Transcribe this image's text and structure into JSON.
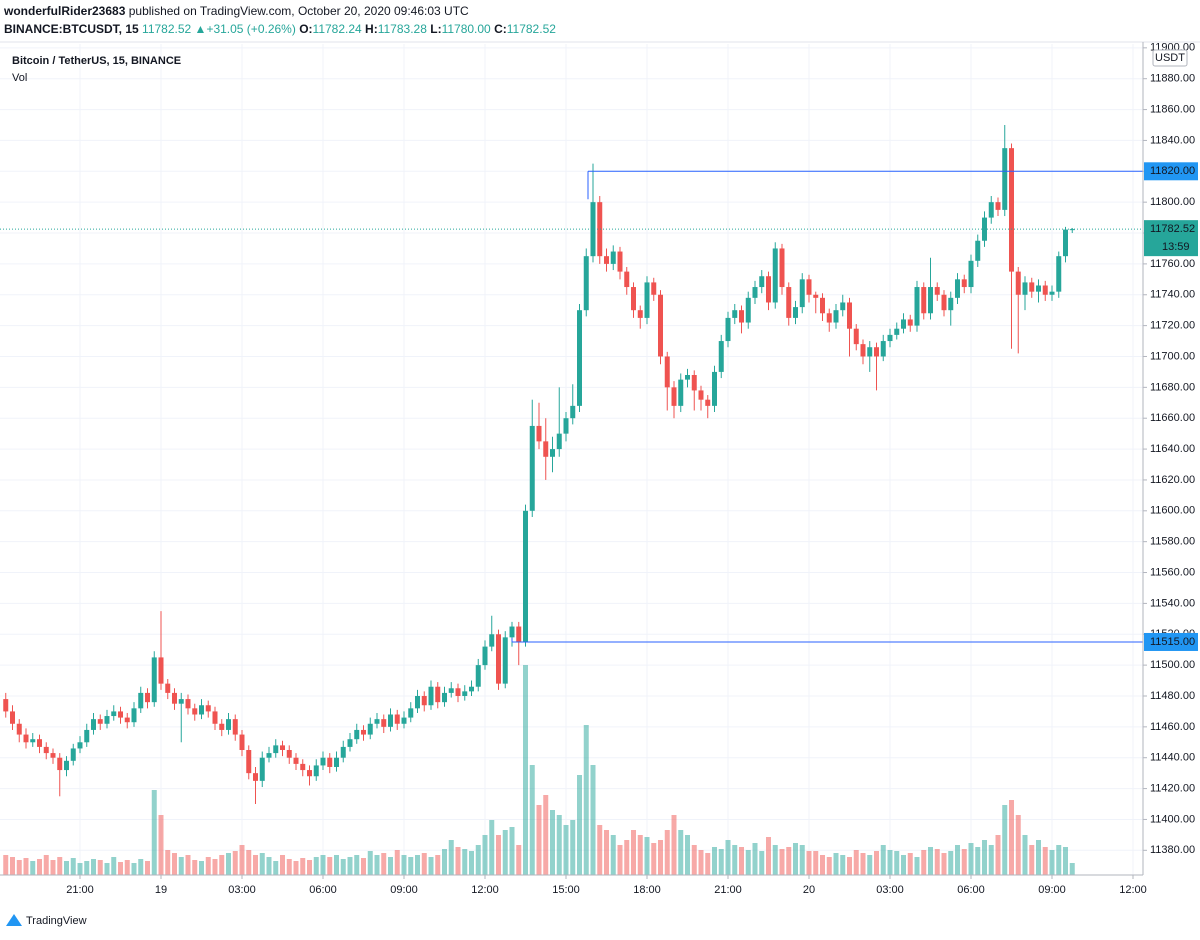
{
  "header": {
    "publisher": "wonderfulRider23683",
    "published_text": "published on TradingView.com, October 20, 2020 09:46:03 UTC",
    "symbol": "BINANCE:BTCUSDT, 15",
    "last": "11782.52",
    "arrow": "▲",
    "change": "+31.05 (+0.26%)",
    "o_label": "O:",
    "o": "11782.24",
    "h_label": "H:",
    "h": "11783.28",
    "l_label": "L:",
    "l": "11780.00",
    "c_label": "C:",
    "c": "11782.52"
  },
  "legend": {
    "title": "Bitcoin / TetherUS, 15, BINANCE",
    "vol": "Vol"
  },
  "currency": "USDT",
  "brand": "TradingView",
  "chart_data": {
    "type": "candlestick",
    "up_color": "#26a69a",
    "down_color": "#ef5350",
    "grid": true,
    "ylim": [
      11364,
      11931
    ],
    "yticks": [
      {
        "value": 11380,
        "label": "11380.00"
      },
      {
        "value": 11400,
        "label": "11400.00"
      },
      {
        "value": 11420,
        "label": "11420.00"
      },
      {
        "value": 11440,
        "label": "11440.00"
      },
      {
        "value": 11460,
        "label": "11460.00"
      },
      {
        "value": 11480,
        "label": "11480.00"
      },
      {
        "value": 11500,
        "label": "11500.00"
      },
      {
        "value": 11520,
        "label": "11520.00"
      },
      {
        "value": 11540,
        "label": "11540.00"
      },
      {
        "value": 11560,
        "label": "11560.00"
      },
      {
        "value": 11580,
        "label": "11580.00"
      },
      {
        "value": 11600,
        "label": "11600.00"
      },
      {
        "value": 11620,
        "label": "11620.00"
      },
      {
        "value": 11640,
        "label": "11640.00"
      },
      {
        "value": 11660,
        "label": "11660.00"
      },
      {
        "value": 11680,
        "label": "11680.00"
      },
      {
        "value": 11700,
        "label": "11700.00"
      },
      {
        "value": 11720,
        "label": "11720.00"
      },
      {
        "value": 11740,
        "label": "11740.00"
      },
      {
        "value": 11760,
        "label": "11760.00"
      },
      {
        "value": 11780,
        "label": "11780.00"
      },
      {
        "value": 11800,
        "label": "11800.00"
      },
      {
        "value": 11820,
        "label": "11820.00"
      },
      {
        "value": 11840,
        "label": "11840.00"
      },
      {
        "value": 11860,
        "label": "11860.00"
      },
      {
        "value": 11880,
        "label": "11880.00"
      },
      {
        "value": 11900,
        "label": "11900.00"
      }
    ],
    "xticks": [
      {
        "value": 11,
        "label": "21:00"
      },
      {
        "value": 23,
        "label": "19"
      },
      {
        "value": 35,
        "label": "03:00"
      },
      {
        "value": 47,
        "label": "06:00"
      },
      {
        "value": 59,
        "label": "09:00"
      },
      {
        "value": 71,
        "label": "12:00"
      },
      {
        "value": 83,
        "label": "15:00"
      },
      {
        "value": 95,
        "label": "18:00"
      },
      {
        "value": 107,
        "label": "21:00"
      },
      {
        "value": 119,
        "label": "20"
      },
      {
        "value": 131,
        "label": "03:00"
      },
      {
        "value": 143,
        "label": "06:00"
      },
      {
        "value": 155,
        "label": "09:00"
      },
      {
        "value": 167,
        "label": "12:00"
      }
    ],
    "levels": [
      {
        "value": 11820,
        "label": "11820.00"
      },
      {
        "value": 11515,
        "label": "11515.00"
      }
    ],
    "last_price": {
      "value": 11782.52,
      "label": "11782.52",
      "countdown": "13:59"
    },
    "ohlc": [
      [
        11478,
        11482,
        11466,
        11470
      ],
      [
        11470,
        11474,
        11458,
        11462
      ],
      [
        11462,
        11465,
        11450,
        11455
      ],
      [
        11455,
        11459,
        11446,
        11450
      ],
      [
        11450,
        11456,
        11447,
        11452
      ],
      [
        11452,
        11455,
        11443,
        11447
      ],
      [
        11447,
        11450,
        11439,
        11443
      ],
      [
        11443,
        11446,
        11436,
        11440
      ],
      [
        11440,
        11443,
        11415,
        11432
      ],
      [
        11432,
        11441,
        11428,
        11438
      ],
      [
        11438,
        11449,
        11435,
        11446
      ],
      [
        11446,
        11454,
        11443,
        11450
      ],
      [
        11450,
        11462,
        11447,
        11458
      ],
      [
        11458,
        11469,
        11455,
        11465
      ],
      [
        11465,
        11468,
        11458,
        11462
      ],
      [
        11462,
        11471,
        11459,
        11467
      ],
      [
        11467,
        11474,
        11464,
        11470
      ],
      [
        11470,
        11473,
        11462,
        11466
      ],
      [
        11466,
        11469,
        11459,
        11463
      ],
      [
        11463,
        11476,
        11460,
        11472
      ],
      [
        11472,
        11486,
        11469,
        11482
      ],
      [
        11482,
        11485,
        11472,
        11476
      ],
      [
        11476,
        11509,
        11473,
        11505
      ],
      [
        11505,
        11535,
        11484,
        11488
      ],
      [
        11488,
        11491,
        11478,
        11482
      ],
      [
        11482,
        11485,
        11471,
        11475
      ],
      [
        11475,
        11482,
        11450,
        11478
      ],
      [
        11478,
        11481,
        11468,
        11472
      ],
      [
        11472,
        11475,
        11464,
        11468
      ],
      [
        11468,
        11478,
        11465,
        11474
      ],
      [
        11474,
        11477,
        11466,
        11470
      ],
      [
        11470,
        11473,
        11458,
        11462
      ],
      [
        11462,
        11465,
        11454,
        11458
      ],
      [
        11458,
        11469,
        11455,
        11465
      ],
      [
        11465,
        11468,
        11451,
        11455
      ],
      [
        11455,
        11458,
        11441,
        11445
      ],
      [
        11445,
        11448,
        11426,
        11430
      ],
      [
        11430,
        11434,
        11410,
        11425
      ],
      [
        11425,
        11444,
        11421,
        11440
      ],
      [
        11440,
        11447,
        11437,
        11443
      ],
      [
        11443,
        11452,
        11440,
        11448
      ],
      [
        11448,
        11451,
        11441,
        11445
      ],
      [
        11445,
        11448,
        11436,
        11440
      ],
      [
        11440,
        11443,
        11432,
        11436
      ],
      [
        11436,
        11439,
        11428,
        11432
      ],
      [
        11432,
        11435,
        11422,
        11428
      ],
      [
        11428,
        11439,
        11425,
        11435
      ],
      [
        11435,
        11444,
        11432,
        11440
      ],
      [
        11440,
        11443,
        11430,
        11434
      ],
      [
        11434,
        11444,
        11431,
        11440
      ],
      [
        11440,
        11451,
        11437,
        11447
      ],
      [
        11447,
        11456,
        11444,
        11452
      ],
      [
        11452,
        11462,
        11449,
        11458
      ],
      [
        11458,
        11461,
        11451,
        11455
      ],
      [
        11455,
        11466,
        11452,
        11462
      ],
      [
        11462,
        11469,
        11459,
        11465
      ],
      [
        11465,
        11468,
        11456,
        11460
      ],
      [
        11460,
        11472,
        11457,
        11468
      ],
      [
        11468,
        11471,
        11458,
        11462
      ],
      [
        11462,
        11470,
        11459,
        11466
      ],
      [
        11466,
        11476,
        11463,
        11472
      ],
      [
        11472,
        11484,
        11469,
        11480
      ],
      [
        11480,
        11483,
        11470,
        11474
      ],
      [
        11474,
        11490,
        11471,
        11486
      ],
      [
        11486,
        11489,
        11472,
        11476
      ],
      [
        11476,
        11486,
        11473,
        11482
      ],
      [
        11482,
        11489,
        11479,
        11485
      ],
      [
        11485,
        11488,
        11476,
        11480
      ],
      [
        11480,
        11487,
        11477,
        11483
      ],
      [
        11483,
        11490,
        11480,
        11486
      ],
      [
        11486,
        11504,
        11483,
        11500
      ],
      [
        11500,
        11516,
        11497,
        11512
      ],
      [
        11512,
        11532,
        11509,
        11520
      ],
      [
        11520,
        11523,
        11484,
        11488
      ],
      [
        11488,
        11522,
        11485,
        11518
      ],
      [
        11518,
        11528,
        11512,
        11525
      ],
      [
        11525,
        11528,
        11500,
        11515
      ],
      [
        11515,
        11604,
        11512,
        11600
      ],
      [
        11600,
        11672,
        11596,
        11655
      ],
      [
        11655,
        11670,
        11640,
        11645
      ],
      [
        11645,
        11660,
        11620,
        11635
      ],
      [
        11635,
        11648,
        11625,
        11640
      ],
      [
        11640,
        11680,
        11635,
        11650
      ],
      [
        11650,
        11664,
        11645,
        11660
      ],
      [
        11660,
        11682,
        11656,
        11668
      ],
      [
        11668,
        11734,
        11664,
        11730
      ],
      [
        11730,
        11770,
        11726,
        11765
      ],
      [
        11765,
        11825,
        11761,
        11800
      ],
      [
        11800,
        11804,
        11760,
        11765
      ],
      [
        11765,
        11770,
        11755,
        11760
      ],
      [
        11760,
        11772,
        11756,
        11768
      ],
      [
        11768,
        11771,
        11750,
        11755
      ],
      [
        11755,
        11758,
        11740,
        11745
      ],
      [
        11745,
        11748,
        11725,
        11730
      ],
      [
        11730,
        11733,
        11718,
        11725
      ],
      [
        11725,
        11752,
        11721,
        11748
      ],
      [
        11748,
        11751,
        11736,
        11740
      ],
      [
        11740,
        11743,
        11695,
        11700
      ],
      [
        11700,
        11703,
        11665,
        11680
      ],
      [
        11680,
        11684,
        11660,
        11668
      ],
      [
        11668,
        11689,
        11664,
        11685
      ],
      [
        11685,
        11692,
        11680,
        11688
      ],
      [
        11688,
        11691,
        11665,
        11678
      ],
      [
        11678,
        11681,
        11665,
        11672
      ],
      [
        11672,
        11675,
        11660,
        11668
      ],
      [
        11668,
        11694,
        11664,
        11690
      ],
      [
        11690,
        11714,
        11686,
        11710
      ],
      [
        11710,
        11729,
        11706,
        11725
      ],
      [
        11725,
        11734,
        11721,
        11730
      ],
      [
        11730,
        11733,
        11715,
        11722
      ],
      [
        11722,
        11742,
        11718,
        11738
      ],
      [
        11738,
        11749,
        11734,
        11745
      ],
      [
        11745,
        11756,
        11741,
        11752
      ],
      [
        11752,
        11755,
        11730,
        11735
      ],
      [
        11735,
        11774,
        11731,
        11770
      ],
      [
        11770,
        11773,
        11740,
        11745
      ],
      [
        11745,
        11748,
        11720,
        11725
      ],
      [
        11725,
        11736,
        11721,
        11732
      ],
      [
        11732,
        11754,
        11728,
        11750
      ],
      [
        11750,
        11753,
        11735,
        11740
      ],
      [
        11740,
        11742,
        11728,
        11738
      ],
      [
        11738,
        11741,
        11723,
        11728
      ],
      [
        11728,
        11731,
        11716,
        11722
      ],
      [
        11722,
        11734,
        11718,
        11730
      ],
      [
        11730,
        11740,
        11726,
        11735
      ],
      [
        11735,
        11738,
        11700,
        11718
      ],
      [
        11718,
        11721,
        11704,
        11708
      ],
      [
        11708,
        11711,
        11695,
        11700
      ],
      [
        11700,
        11710,
        11690,
        11706
      ],
      [
        11706,
        11709,
        11678,
        11700
      ],
      [
        11700,
        11714,
        11697,
        11710
      ],
      [
        11710,
        11718,
        11706,
        11714
      ],
      [
        11714,
        11722,
        11711,
        11718
      ],
      [
        11718,
        11728,
        11715,
        11724
      ],
      [
        11724,
        11727,
        11716,
        11720
      ],
      [
        11720,
        11749,
        11716,
        11745
      ],
      [
        11745,
        11748,
        11724,
        11728
      ],
      [
        11728,
        11764,
        11724,
        11745
      ],
      [
        11745,
        11748,
        11736,
        11740
      ],
      [
        11740,
        11743,
        11726,
        11730
      ],
      [
        11730,
        11742,
        11720,
        11738
      ],
      [
        11738,
        11754,
        11734,
        11750
      ],
      [
        11750,
        11753,
        11741,
        11745
      ],
      [
        11745,
        11766,
        11741,
        11762
      ],
      [
        11762,
        11779,
        11758,
        11775
      ],
      [
        11775,
        11794,
        11771,
        11790
      ],
      [
        11790,
        11804,
        11786,
        11800
      ],
      [
        11800,
        11803,
        11791,
        11795
      ],
      [
        11795,
        11850,
        11791,
        11835
      ],
      [
        11835,
        11838,
        11705,
        11755
      ],
      [
        11755,
        11758,
        11702,
        11740
      ],
      [
        11740,
        11752,
        11730,
        11748
      ],
      [
        11748,
        11751,
        11738,
        11742
      ],
      [
        11742,
        11750,
        11735,
        11746
      ],
      [
        11746,
        11749,
        11736,
        11740
      ],
      [
        11740,
        11746,
        11736,
        11742
      ],
      [
        11742,
        11768,
        11738,
        11765
      ],
      [
        11765,
        11784,
        11761,
        11782.24
      ],
      [
        11782.24,
        11783.28,
        11780,
        11782.52
      ]
    ],
    "volume": [
      20,
      18,
      15,
      17,
      14,
      16,
      20,
      15,
      18,
      14,
      17,
      12,
      14,
      16,
      15,
      12,
      18,
      13,
      15,
      12,
      16,
      14,
      85,
      60,
      25,
      22,
      18,
      20,
      15,
      14,
      18,
      16,
      20,
      22,
      24,
      30,
      25,
      20,
      22,
      18,
      14,
      20,
      16,
      14,
      17,
      15,
      18,
      20,
      18,
      20,
      16,
      18,
      20,
      17,
      24,
      20,
      22,
      18,
      25,
      20,
      18,
      20,
      22,
      18,
      20,
      26,
      35,
      28,
      26,
      24,
      30,
      40,
      55,
      40,
      45,
      48,
      30,
      210,
      110,
      70,
      80,
      65,
      60,
      50,
      55,
      100,
      150,
      110,
      50,
      45,
      40,
      30,
      35,
      45,
      40,
      38,
      32,
      35,
      45,
      60,
      45,
      40,
      30,
      25,
      22,
      28,
      26,
      35,
      30,
      28,
      25,
      32,
      24,
      38,
      30,
      26,
      28,
      32,
      30,
      24,
      24,
      20,
      18,
      22,
      20,
      18,
      25,
      22,
      20,
      24,
      30,
      25,
      24,
      20,
      22,
      18,
      25,
      28,
      26,
      22,
      24,
      30,
      26,
      32,
      28,
      35,
      30,
      40,
      70,
      75,
      60,
      40,
      30,
      35,
      28,
      25,
      30,
      28,
      12
    ]
  }
}
